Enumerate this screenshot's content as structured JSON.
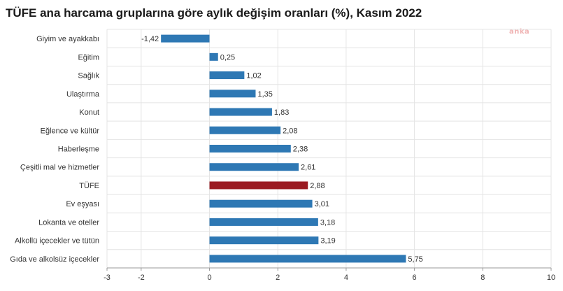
{
  "logo_text": "anka",
  "chart_data": {
    "type": "bar",
    "orientation": "horizontal",
    "title": "TÜFE ana harcama gruplarına göre aylık değişim oranları (%), Kasım 2022",
    "xlabel": "",
    "ylabel": "",
    "xlim": [
      -3,
      10
    ],
    "xticks": [
      -3,
      -2,
      0,
      2,
      4,
      6,
      8,
      10
    ],
    "tick_labels": [
      "-3",
      "-2",
      "0",
      "2",
      "4",
      "6",
      "8",
      "10"
    ],
    "grid": true,
    "legend": false,
    "categories": [
      "Giyim ve ayakkabı",
      "Eğitim",
      "Sağlık",
      "Ulaştırma",
      "Konut",
      "Eğlence ve kültür",
      "Haberleşme",
      "Çeşitli mal ve hizmetler",
      "TÜFE",
      "Ev eşyası",
      "Lokanta ve oteller",
      "Alkollü içecekler ve tütün",
      "Gıda ve alkolsüz içecekler"
    ],
    "values": [
      -1.42,
      0.25,
      1.02,
      1.35,
      1.83,
      2.08,
      2.38,
      2.61,
      2.88,
      3.01,
      3.18,
      3.19,
      5.75
    ],
    "value_labels": [
      "-1,42",
      "0,25",
      "1,02",
      "1,35",
      "1,83",
      "2,08",
      "2,38",
      "2,61",
      "2,88",
      "3,01",
      "3,18",
      "3,19",
      "5,75"
    ],
    "colors": {
      "default": "#2e78b4",
      "highlight": "#9b1b22",
      "highlight_category": "TÜFE",
      "grid": "#e4e4e4",
      "axis": "#999999"
    }
  }
}
